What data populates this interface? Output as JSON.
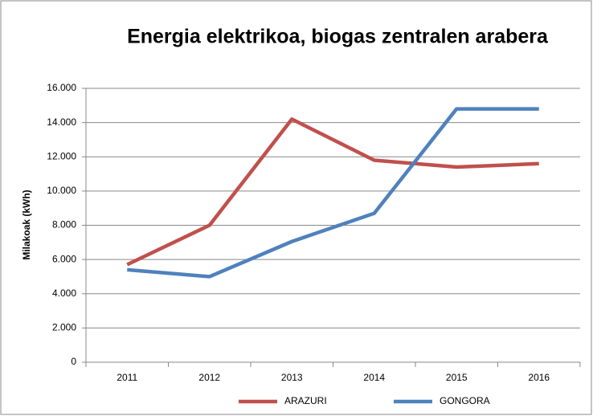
{
  "chart_data": {
    "type": "line",
    "title": "Energia elektrikoa, biogas zentralen arabera",
    "y_label": "Milakoak (kWh)",
    "categories": [
      "2011",
      "2012",
      "2013",
      "2014",
      "2015",
      "2016"
    ],
    "series": [
      {
        "name": "ARAZURI",
        "color": "#c0504d",
        "values": [
          5700,
          8000,
          14200,
          11800,
          11400,
          11600
        ]
      },
      {
        "name": "GONGORA",
        "color": "#4f81bd",
        "values": [
          5400,
          5000,
          7050,
          8700,
          14800,
          14800
        ]
      }
    ],
    "ylim": [
      0,
      16000
    ],
    "yticks": [
      0,
      {
        "value": 2000,
        "label": "2.000"
      },
      {
        "value": 4000,
        "label": "4.000"
      },
      {
        "value": 6000,
        "label": "6.000"
      },
      {
        "value": 8000,
        "label": "8.000"
      },
      {
        "value": 10000,
        "label": "10.000"
      },
      {
        "value": 12000,
        "label": "12.000"
      },
      {
        "value": 14000,
        "label": "14.000"
      },
      {
        "value": 16000,
        "label": "16.000"
      }
    ],
    "grid": true,
    "legend": "bottom"
  }
}
